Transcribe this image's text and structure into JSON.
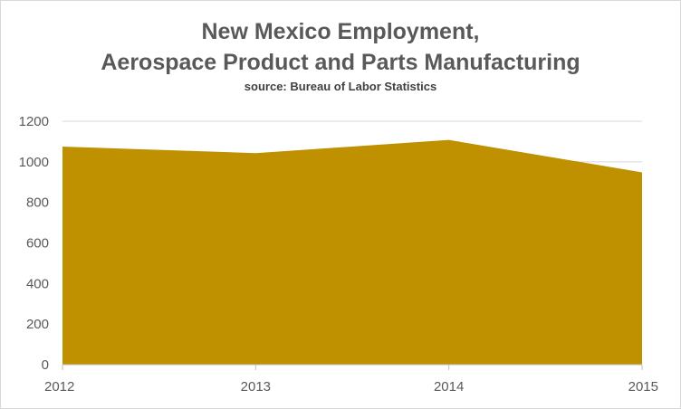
{
  "chart_data": {
    "type": "area",
    "title_line1": "New Mexico Employment,",
    "title_line2": "Aerospace Product and Parts Manufacturing",
    "subtitle": "source: Bureau of Labor Statistics",
    "xlabel": "",
    "ylabel": "",
    "categories": [
      "2012",
      "2013",
      "2014",
      "2015"
    ],
    "values": [
      1075,
      1043,
      1108,
      948
    ],
    "ylim": [
      0,
      1200
    ],
    "yticks": [
      0,
      200,
      400,
      600,
      800,
      1000,
      1200
    ],
    "grid": true,
    "legend": "none",
    "fill_color": "#bf9000",
    "grid_color": "#d9d9d9"
  }
}
